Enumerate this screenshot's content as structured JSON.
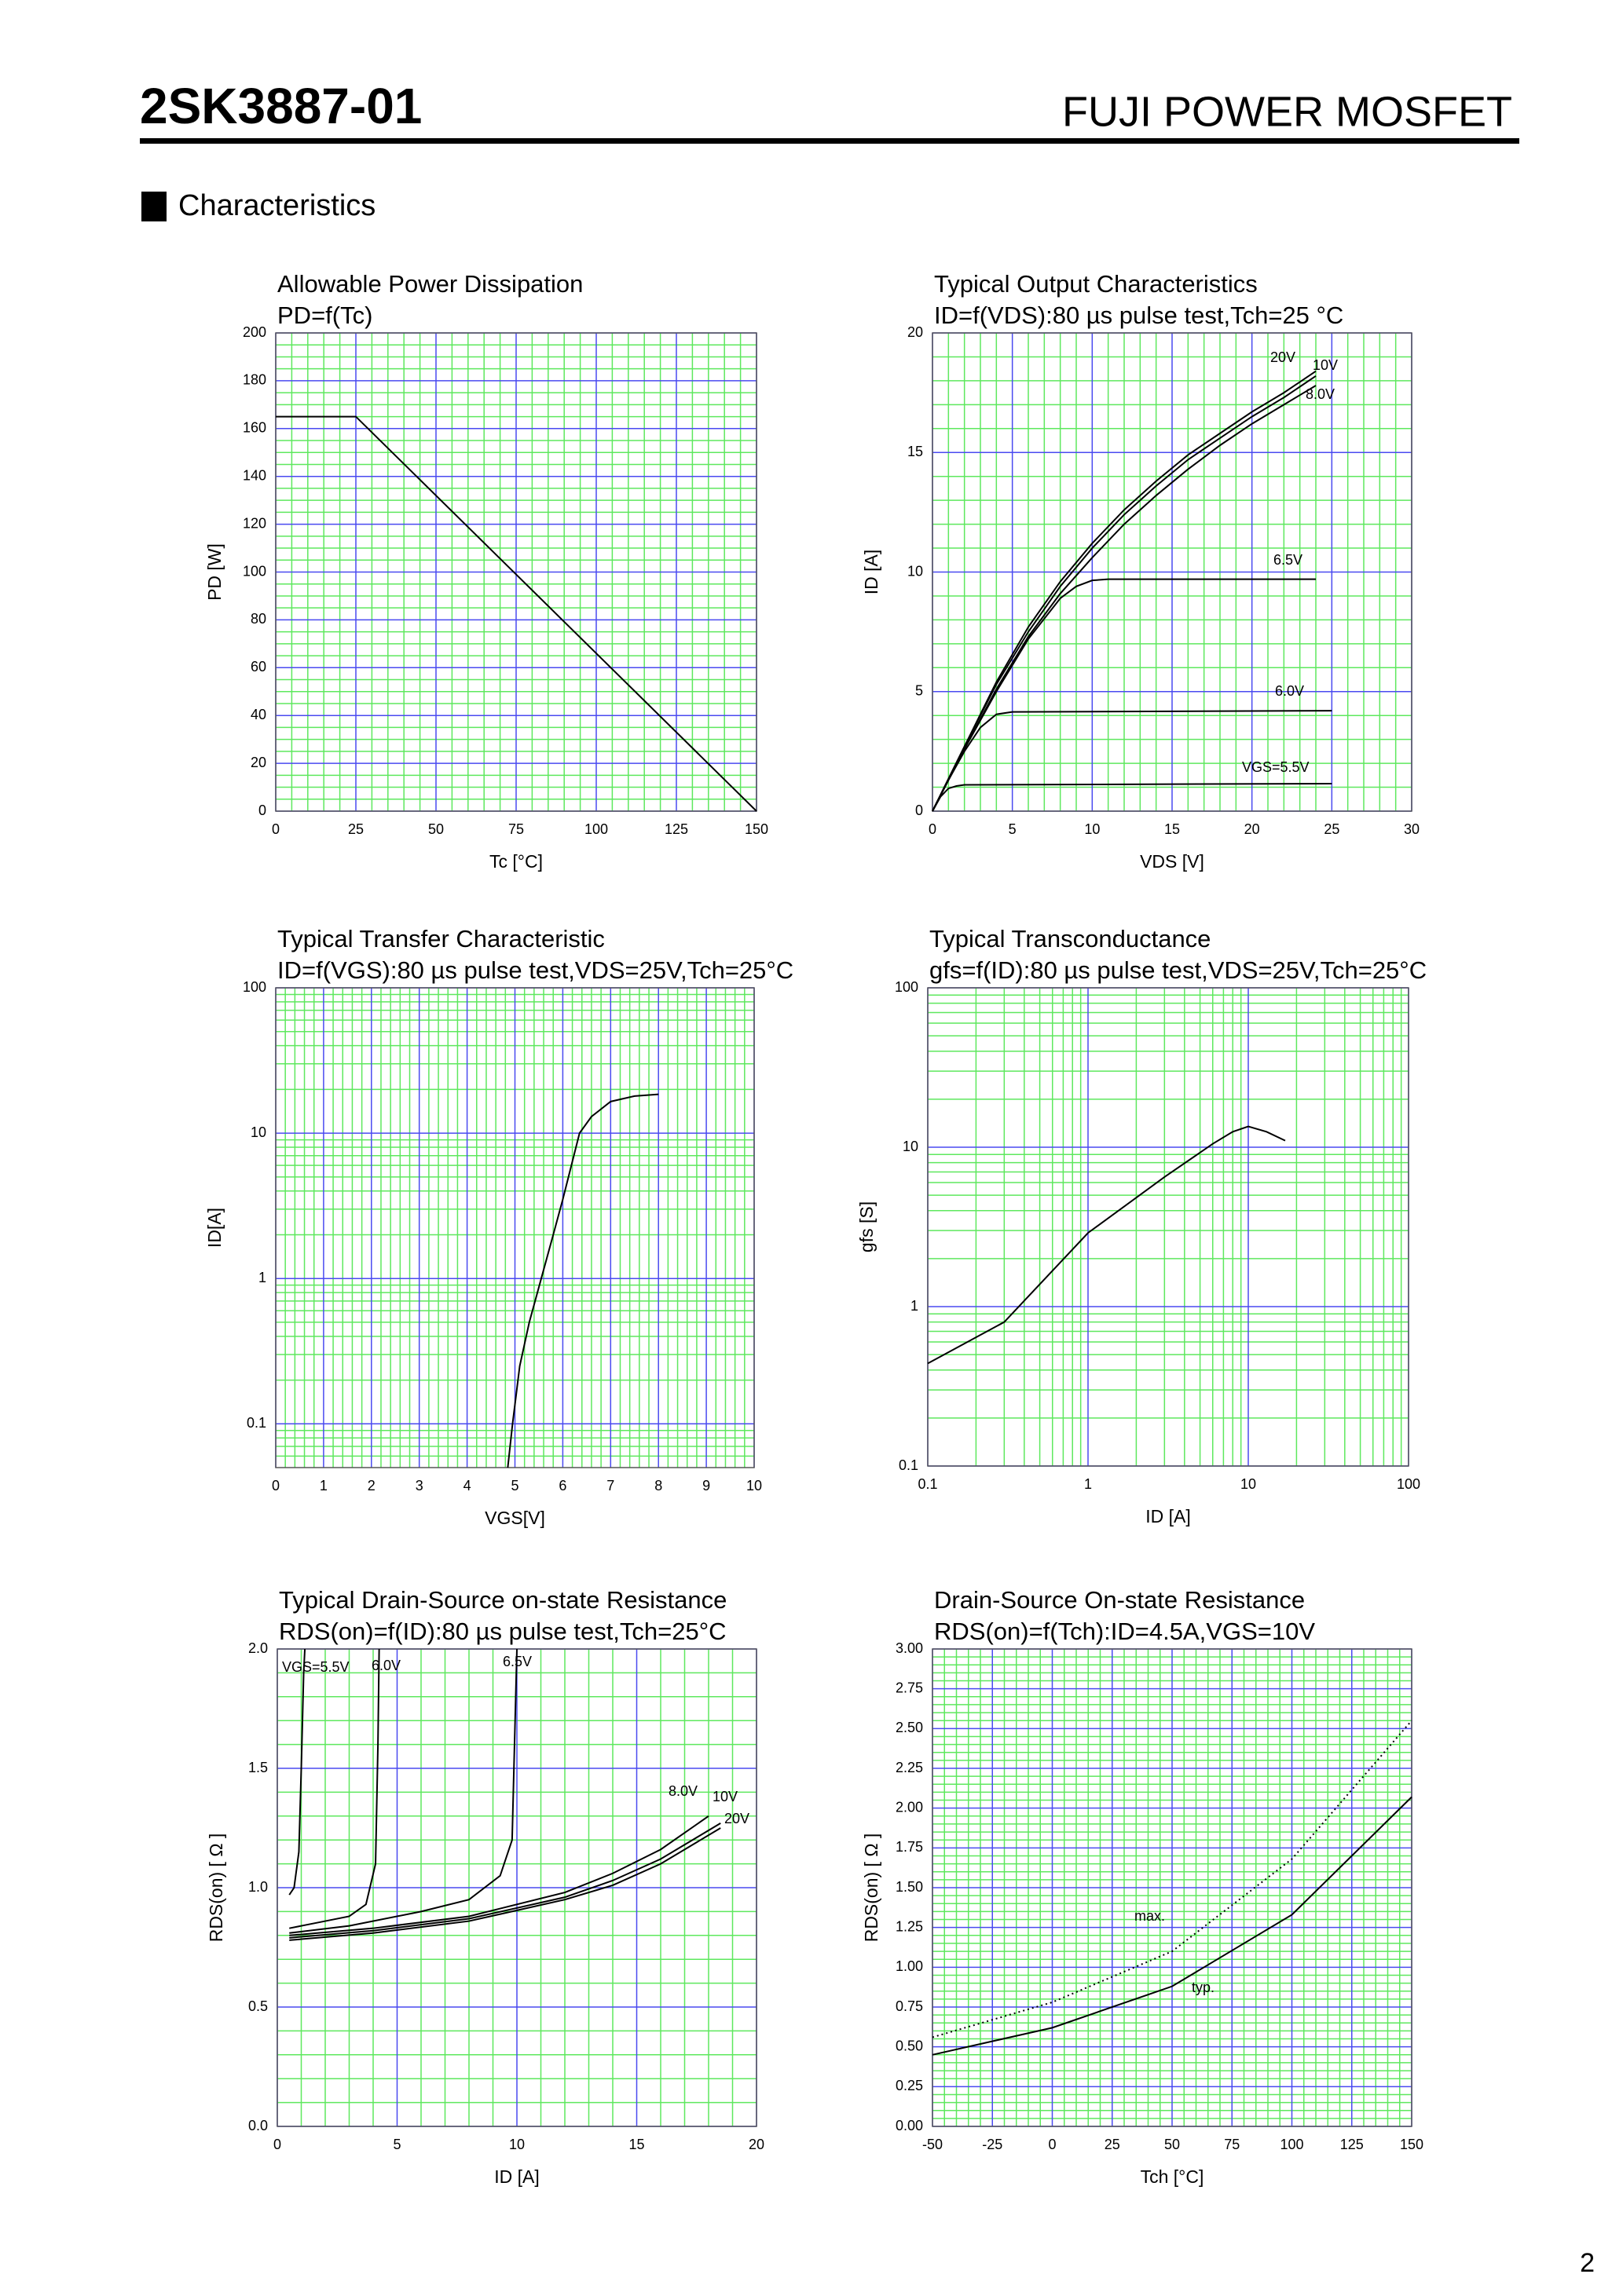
{
  "header": {
    "part_number": "2SK3887-01",
    "product": "FUJI POWER MOSFET",
    "section": "Characteristics",
    "page_number": "2"
  },
  "chart_data": [
    {
      "type": "line",
      "title": "Allowable Power Dissipation",
      "subtitle": "PD=f(Tc)",
      "xlabel": "Tc [°C]",
      "ylabel": "PD [W]",
      "xlim": [
        0,
        150
      ],
      "xticks": [
        0,
        25,
        50,
        75,
        100,
        125,
        150
      ],
      "ylim": [
        0,
        200
      ],
      "yticks": [
        0,
        20,
        40,
        60,
        80,
        100,
        120,
        140,
        160,
        180,
        200
      ],
      "grid": true,
      "series": [
        {
          "color": "#000000",
          "x": [
            0,
            25,
            150
          ],
          "values": [
            165,
            165,
            0
          ]
        }
      ]
    },
    {
      "type": "line",
      "title": "Typical Output Characteristics",
      "subtitle": "ID=f(VDS):80 µs pulse test,Tch=25 °C",
      "xlabel": "VDS [V]",
      "ylabel": "ID [A]",
      "xlim": [
        0,
        30
      ],
      "xticks": [
        0,
        5,
        10,
        15,
        20,
        25,
        30
      ],
      "ylim": [
        0,
        20
      ],
      "yticks": [
        0,
        5,
        10,
        15,
        20
      ],
      "grid": true,
      "series": [
        {
          "name": "VGS=5.5V",
          "color": "#000000",
          "x": [
            0,
            0.5,
            1,
            1.5,
            2,
            25
          ],
          "values": [
            0,
            0.6,
            0.95,
            1.05,
            1.1,
            1.15
          ]
        },
        {
          "name": "6.0V",
          "color": "#000000",
          "x": [
            0,
            1,
            2,
            3,
            4,
            5,
            25
          ],
          "values": [
            0,
            1.3,
            2.5,
            3.5,
            4.05,
            4.15,
            4.2
          ]
        },
        {
          "name": "6.5V",
          "color": "#000000",
          "x": [
            0,
            2,
            4,
            6,
            8,
            9,
            10,
            11,
            24
          ],
          "values": [
            0,
            2.6,
            5,
            7.2,
            8.9,
            9.4,
            9.65,
            9.7,
            9.7
          ]
        },
        {
          "name": "8.0V",
          "color": "#000000",
          "x": [
            0,
            2,
            4,
            6,
            8,
            10,
            12,
            14,
            16,
            18,
            20,
            22,
            24
          ],
          "values": [
            0,
            2.6,
            5.1,
            7.3,
            9.1,
            10.6,
            12,
            13.2,
            14.3,
            15.3,
            16.2,
            17,
            17.8
          ]
        },
        {
          "name": "10V",
          "color": "#000000",
          "x": [
            0,
            2,
            4,
            6,
            8,
            10,
            12,
            14,
            16,
            18,
            20,
            22,
            24
          ],
          "values": [
            0,
            2.7,
            5.3,
            7.5,
            9.4,
            11,
            12.4,
            13.6,
            14.7,
            15.6,
            16.5,
            17.3,
            18.2
          ]
        },
        {
          "name": "20V",
          "color": "#000000",
          "x": [
            0,
            2,
            4,
            6,
            8,
            10,
            12,
            14,
            16,
            18,
            20,
            22,
            24
          ],
          "values": [
            0,
            2.7,
            5.4,
            7.7,
            9.6,
            11.2,
            12.6,
            13.8,
            14.9,
            15.8,
            16.7,
            17.5,
            18.4
          ]
        }
      ]
    },
    {
      "type": "line",
      "title": "Typical Transfer Characteristic",
      "subtitle": "ID=f(VGS):80 µs pulse test,VDS=25V,Tch=25°C",
      "xlabel": "VGS[V]",
      "ylabel": "ID[A]",
      "xlim": [
        0,
        10
      ],
      "xticks": [
        0,
        1,
        2,
        3,
        4,
        5,
        6,
        7,
        8,
        9,
        10
      ],
      "ylim": [
        0.05,
        100
      ],
      "yticks": [
        0.1,
        1,
        10,
        100
      ],
      "ylog": true,
      "grid": true,
      "series": [
        {
          "color": "#000000",
          "x": [
            4.85,
            4.95,
            5.1,
            5.3,
            5.55,
            5.8,
            6.0,
            6.35,
            6.6,
            7.0,
            7.5,
            8.0
          ],
          "values": [
            0.05,
            0.1,
            0.25,
            0.5,
            1,
            2,
            3.5,
            10,
            13,
            16.5,
            18,
            18.5
          ]
        }
      ]
    },
    {
      "type": "line",
      "title": "Typical Transconductance",
      "subtitle": "gfs=f(ID):80 µs pulse test,VDS=25V,Tch=25°C",
      "xlabel": "ID [A]",
      "ylabel": "gfs [S]",
      "xlim": [
        0.1,
        100
      ],
      "xticks": [
        0.1,
        1,
        10,
        100
      ],
      "xlog": true,
      "ylim": [
        0.1,
        100
      ],
      "yticks": [
        0.1,
        1,
        10,
        100
      ],
      "ylog": true,
      "grid": true,
      "series": [
        {
          "color": "#000000",
          "x": [
            0.1,
            0.3,
            1,
            3,
            6,
            8,
            10,
            13,
            17
          ],
          "values": [
            0.44,
            0.8,
            2.9,
            6.5,
            10.5,
            12.5,
            13.5,
            12.5,
            11
          ]
        }
      ]
    },
    {
      "type": "line",
      "title": "Typical Drain-Source on-state Resistance",
      "subtitle": "RDS(on)=f(ID):80  µs pulse test,Tch=25°C",
      "xlabel": "ID [A]",
      "ylabel": "RDS(on) [ Ω ]",
      "xlim": [
        0,
        20
      ],
      "xticks": [
        0,
        5,
        10,
        15,
        20
      ],
      "ylim": [
        0,
        2
      ],
      "yticks": [
        {
          "value": 0,
          "label": "0.0"
        },
        0.5,
        {
          "value": 1,
          "label": "1.0"
        },
        1.5,
        {
          "value": 2,
          "label": "2.0"
        }
      ],
      "grid": true,
      "series": [
        {
          "name": "VGS=5.5V",
          "color": "#000000",
          "x": [
            0.5,
            0.7,
            0.9,
            1.0,
            1.1,
            1.15
          ],
          "values": [
            0.97,
            1.0,
            1.15,
            1.5,
            1.9,
            2.0
          ]
        },
        {
          "name": "6.0V",
          "color": "#000000",
          "x": [
            0.5,
            2,
            3,
            3.7,
            4.1,
            4.2,
            4.25
          ],
          "values": [
            0.83,
            0.86,
            0.88,
            0.93,
            1.1,
            1.6,
            2.0
          ]
        },
        {
          "name": "6.5V",
          "color": "#000000",
          "x": [
            0.5,
            3,
            6,
            8,
            9.3,
            9.8,
            9.9,
            10
          ],
          "values": [
            0.81,
            0.84,
            0.9,
            0.95,
            1.05,
            1.2,
            1.6,
            2.0
          ]
        },
        {
          "name": "8.0V",
          "color": "#000000",
          "x": [
            0.5,
            4,
            8,
            12,
            14,
            16,
            18
          ],
          "values": [
            0.8,
            0.83,
            0.88,
            0.98,
            1.06,
            1.16,
            1.3
          ]
        },
        {
          "name": "10V",
          "color": "#000000",
          "x": [
            0.5,
            4,
            8,
            12,
            14,
            16,
            18.5
          ],
          "values": [
            0.79,
            0.82,
            0.87,
            0.96,
            1.03,
            1.12,
            1.27
          ]
        },
        {
          "name": "20V",
          "color": "#000000",
          "x": [
            0.5,
            4,
            8,
            12,
            14,
            16,
            18.5
          ],
          "values": [
            0.78,
            0.81,
            0.86,
            0.95,
            1.01,
            1.1,
            1.25
          ]
        }
      ]
    },
    {
      "type": "line",
      "title": "Drain-Source On-state Resistance",
      "subtitle": "RDS(on)=f(Tch):ID=4.5A,VGS=10V",
      "xlabel": "Tch [°C]",
      "ylabel": "RDS(on) [ Ω ]",
      "xlim": [
        -50,
        150
      ],
      "xticks": [
        -50,
        -25,
        0,
        25,
        50,
        75,
        100,
        125,
        150
      ],
      "ylim": [
        0,
        3
      ],
      "yticks": [
        {
          "value": 0,
          "label": "0.00"
        },
        0.25,
        {
          "value": 0.5,
          "label": "0.50"
        },
        0.75,
        {
          "value": 1,
          "label": "1.00"
        },
        1.25,
        {
          "value": 1.5,
          "label": "1.50"
        },
        1.75,
        {
          "value": 2,
          "label": "2.00"
        },
        2.25,
        {
          "value": 2.5,
          "label": "2.50"
        },
        2.75,
        {
          "value": 3,
          "label": "3.00"
        }
      ],
      "grid": true,
      "series": [
        {
          "name": "max.",
          "color": "#000000",
          "style": "dotted",
          "x": [
            -50,
            0,
            50,
            100,
            150
          ],
          "values": [
            0.56,
            0.78,
            1.1,
            1.68,
            2.55
          ]
        },
        {
          "name": "typ.",
          "color": "#000000",
          "x": [
            -50,
            0,
            50,
            100,
            150
          ],
          "values": [
            0.45,
            0.62,
            0.88,
            1.33,
            2.07
          ]
        }
      ]
    }
  ]
}
